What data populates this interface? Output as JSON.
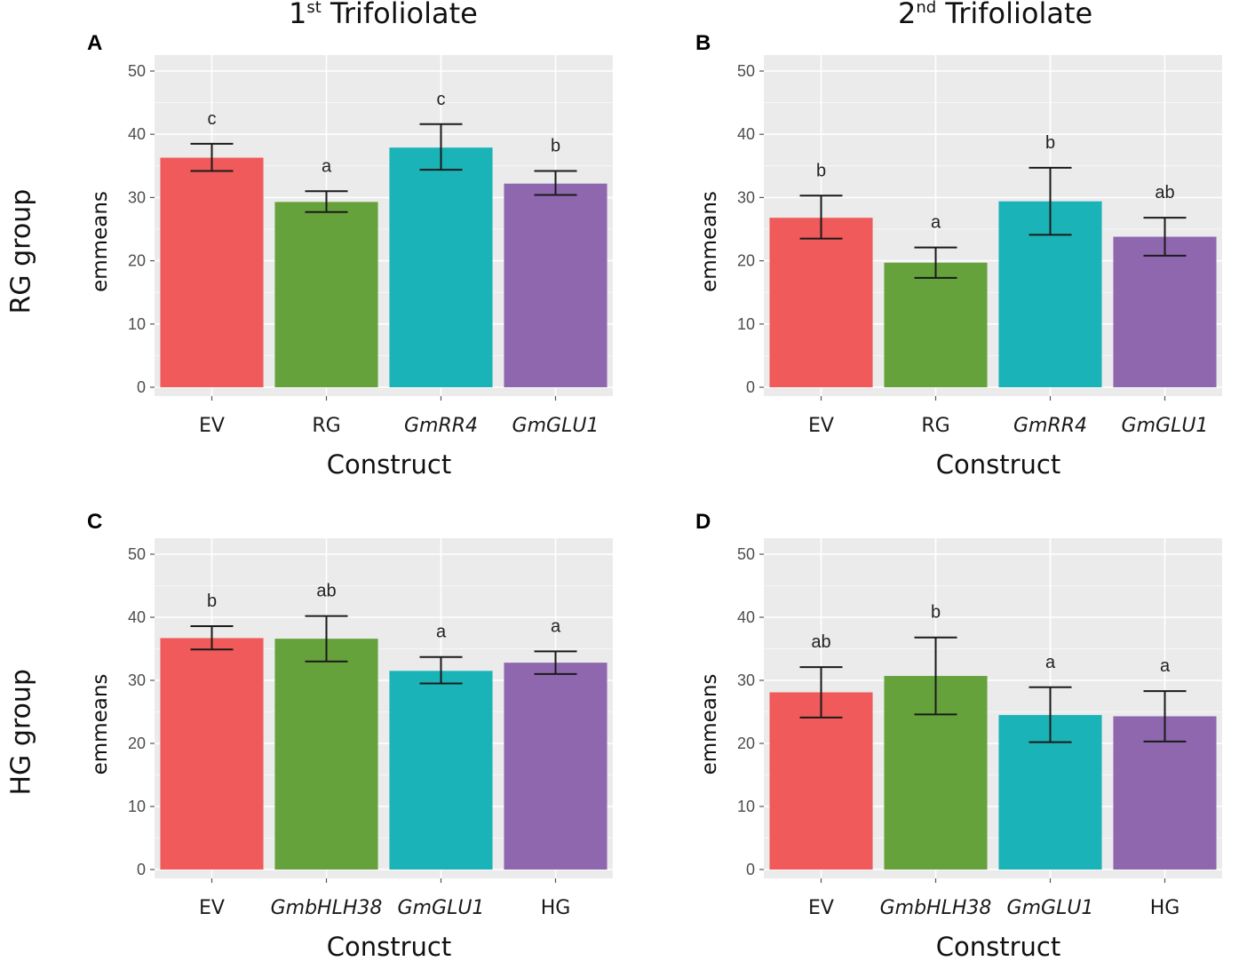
{
  "figure": {
    "col_titles": [
      {
        "base": "1",
        "sup": "st",
        "rest": " Trifoliolate"
      },
      {
        "base": "2",
        "sup": "nd",
        "rest": " Trifoliolate"
      }
    ],
    "row_labels": [
      "RG group",
      "HG group"
    ],
    "colors": {
      "panel_bg": "#ebebeb",
      "grid": "#ffffff",
      "error_bar": "#1a1a1a",
      "bars": [
        "#f05a5a",
        "#66a23c",
        "#1ab4b8",
        "#8f67ae"
      ]
    }
  },
  "chart_data": [
    {
      "panel": "A",
      "type": "bar",
      "categories": [
        "EV",
        "RG",
        "GmRR4",
        "GmGLU1"
      ],
      "italic": [
        false,
        false,
        true,
        true
      ],
      "values": [
        36.3,
        29.3,
        37.9,
        32.2
      ],
      "err_low": [
        34.2,
        27.7,
        34.4,
        30.4
      ],
      "err_high": [
        38.5,
        31.0,
        41.6,
        34.2
      ],
      "sig": [
        "c",
        "a",
        "c",
        "b"
      ],
      "xlabel": "Construct",
      "ylabel": "emmeans",
      "ylim": [
        0,
        50
      ],
      "yticks": [
        0,
        10,
        20,
        30,
        40,
        50
      ]
    },
    {
      "panel": "B",
      "type": "bar",
      "categories": [
        "EV",
        "RG",
        "GmRR4",
        "GmGLU1"
      ],
      "italic": [
        false,
        false,
        true,
        true
      ],
      "values": [
        26.8,
        19.7,
        29.4,
        23.8
      ],
      "err_low": [
        23.5,
        17.3,
        24.1,
        20.8
      ],
      "err_high": [
        30.3,
        22.1,
        34.7,
        26.8
      ],
      "sig": [
        "b",
        "a",
        "b",
        "ab"
      ],
      "xlabel": "Construct",
      "ylabel": "emmeans",
      "ylim": [
        0,
        50
      ],
      "yticks": [
        0,
        10,
        20,
        30,
        40,
        50
      ]
    },
    {
      "panel": "C",
      "type": "bar",
      "categories": [
        "EV",
        "GmbHLH38",
        "GmGLU1",
        "HG"
      ],
      "italic": [
        false,
        true,
        true,
        false
      ],
      "values": [
        36.7,
        36.6,
        31.5,
        32.8
      ],
      "err_low": [
        34.9,
        33.0,
        29.5,
        31.0
      ],
      "err_high": [
        38.6,
        40.2,
        33.7,
        34.6
      ],
      "sig": [
        "b",
        "ab",
        "a",
        "a"
      ],
      "xlabel": "Construct",
      "ylabel": "emmeans",
      "ylim": [
        0,
        50
      ],
      "yticks": [
        0,
        10,
        20,
        30,
        40,
        50
      ]
    },
    {
      "panel": "D",
      "type": "bar",
      "categories": [
        "EV",
        "GmbHLH38",
        "GmGLU1",
        "HG"
      ],
      "italic": [
        false,
        true,
        true,
        false
      ],
      "values": [
        28.1,
        30.7,
        24.5,
        24.3
      ],
      "err_low": [
        24.1,
        24.6,
        20.2,
        20.3
      ],
      "err_high": [
        32.1,
        36.8,
        28.9,
        28.3
      ],
      "sig": [
        "ab",
        "b",
        "a",
        "a"
      ],
      "xlabel": "Construct",
      "ylabel": "emmeans",
      "ylim": [
        0,
        50
      ],
      "yticks": [
        0,
        10,
        20,
        30,
        40,
        50
      ]
    }
  ]
}
